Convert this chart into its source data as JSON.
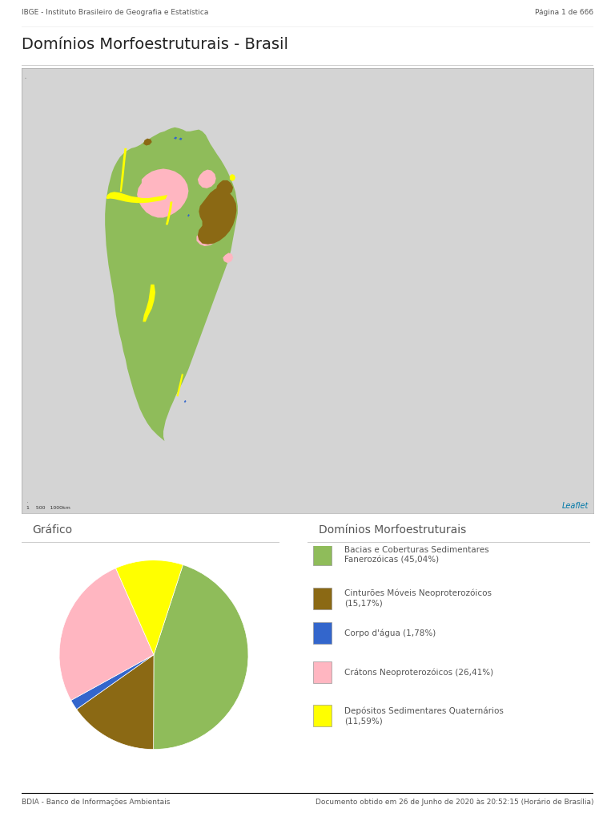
{
  "page_title": "Domínios Morfoestruturais - Brasil",
  "header_left": "IBGE - Instituto Brasileiro de Geografia e Estatística",
  "header_right": "Página 1 de 666",
  "footer_left": "BDIA - Banco de Informações Ambientais",
  "footer_right": "Documento obtido em 26 de Junho de 2020 às 20:52:15 (Horário de Brasília)",
  "grafico_title": "Gráfico",
  "legend_title": "Domínios Morfoestruturais",
  "map_bg_color": "#d4d4d4",
  "page_bg_color": "#ffffff",
  "pie_data": [
    45.04,
    15.17,
    1.78,
    26.41,
    11.59
  ],
  "pie_colors": [
    "#8fbc5a",
    "#8B6914",
    "#3366CC",
    "#FFB6C1",
    "#FFFF00"
  ],
  "pie_startangle": 72,
  "legend_colors": [
    "#8fbc5a",
    "#8B6914",
    "#3366CC",
    "#FFB6C1",
    "#FFFF00"
  ],
  "legend_labels": [
    "Bacias e Coberturas Sedimentares\nFanerozóicas (45,04%)",
    "Cinturões Móveis Neoproterozóicos\n(15,17%)",
    "Corpo d'água (1,78%)",
    "Crátons Neoproterozóicos (26,41%)",
    "Depósitos Sedimentares Quaternários\n(11,59%)"
  ],
  "leaflet_text": "Leaflet",
  "leaflet_color": "#0078A8",
  "scale_text": "1    500   1000km",
  "text_color": "#555555",
  "header_fontsize": 6.5,
  "title_fontsize": 14,
  "section_title_fontsize": 10,
  "legend_fontsize": 7.5,
  "footer_fontsize": 6.5,
  "green_color": "#8fbc5a",
  "brown_color": "#8B6914",
  "blue_color": "#3366CC",
  "pink_color": "#FFB6C1",
  "yellow_color": "#FFFF00"
}
